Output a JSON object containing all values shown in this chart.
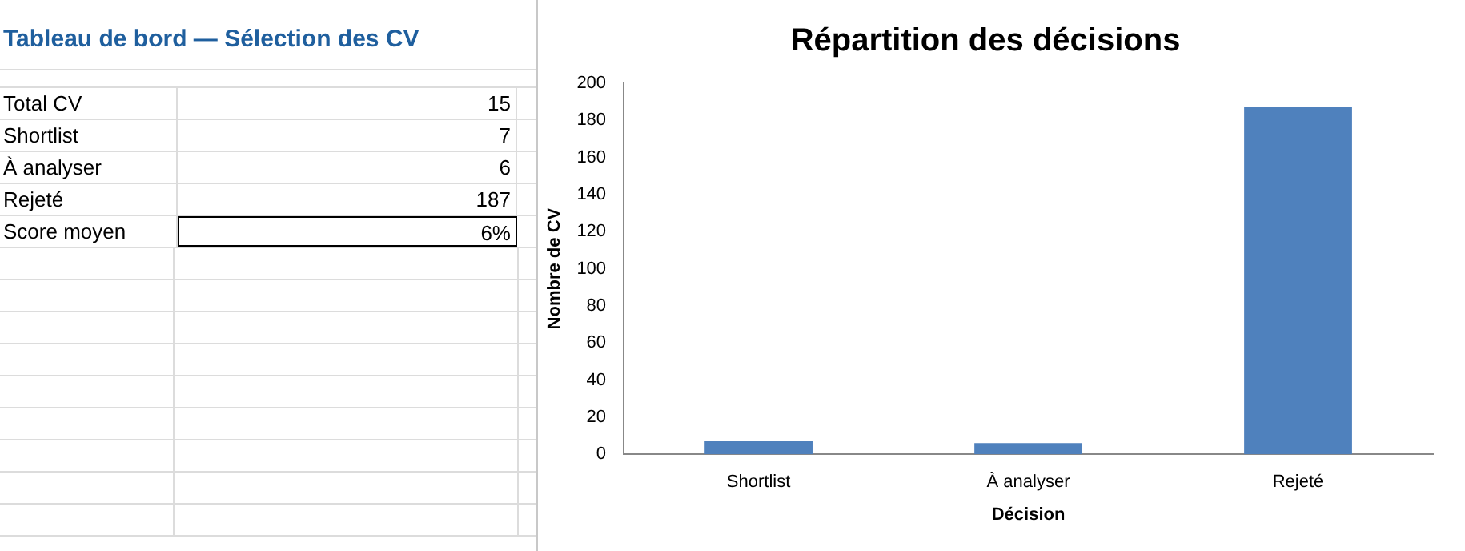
{
  "chart_data": [
    {
      "type": "other",
      "title": "Tableau de bord — Sélection des CV",
      "categories": [
        "Total CV",
        "Shortlist",
        "À analyser",
        "Rejeté",
        "Score moyen"
      ],
      "value_labels": [
        "15",
        "7",
        "6",
        "187",
        "6%"
      ]
    },
    {
      "type": "bar",
      "title": "Répartition des décisions",
      "xlabel": "Décision",
      "ylabel": "Nombre de CV",
      "categories": [
        "Shortlist",
        "À analyser",
        "Rejeté"
      ],
      "values": [
        7,
        6,
        187
      ],
      "color": "#4f81bd",
      "ylim": [
        0,
        200
      ],
      "yticks": [
        0,
        20,
        40,
        60,
        80,
        100,
        120,
        140,
        160,
        180,
        200
      ],
      "grid": false,
      "legend": false
    }
  ]
}
